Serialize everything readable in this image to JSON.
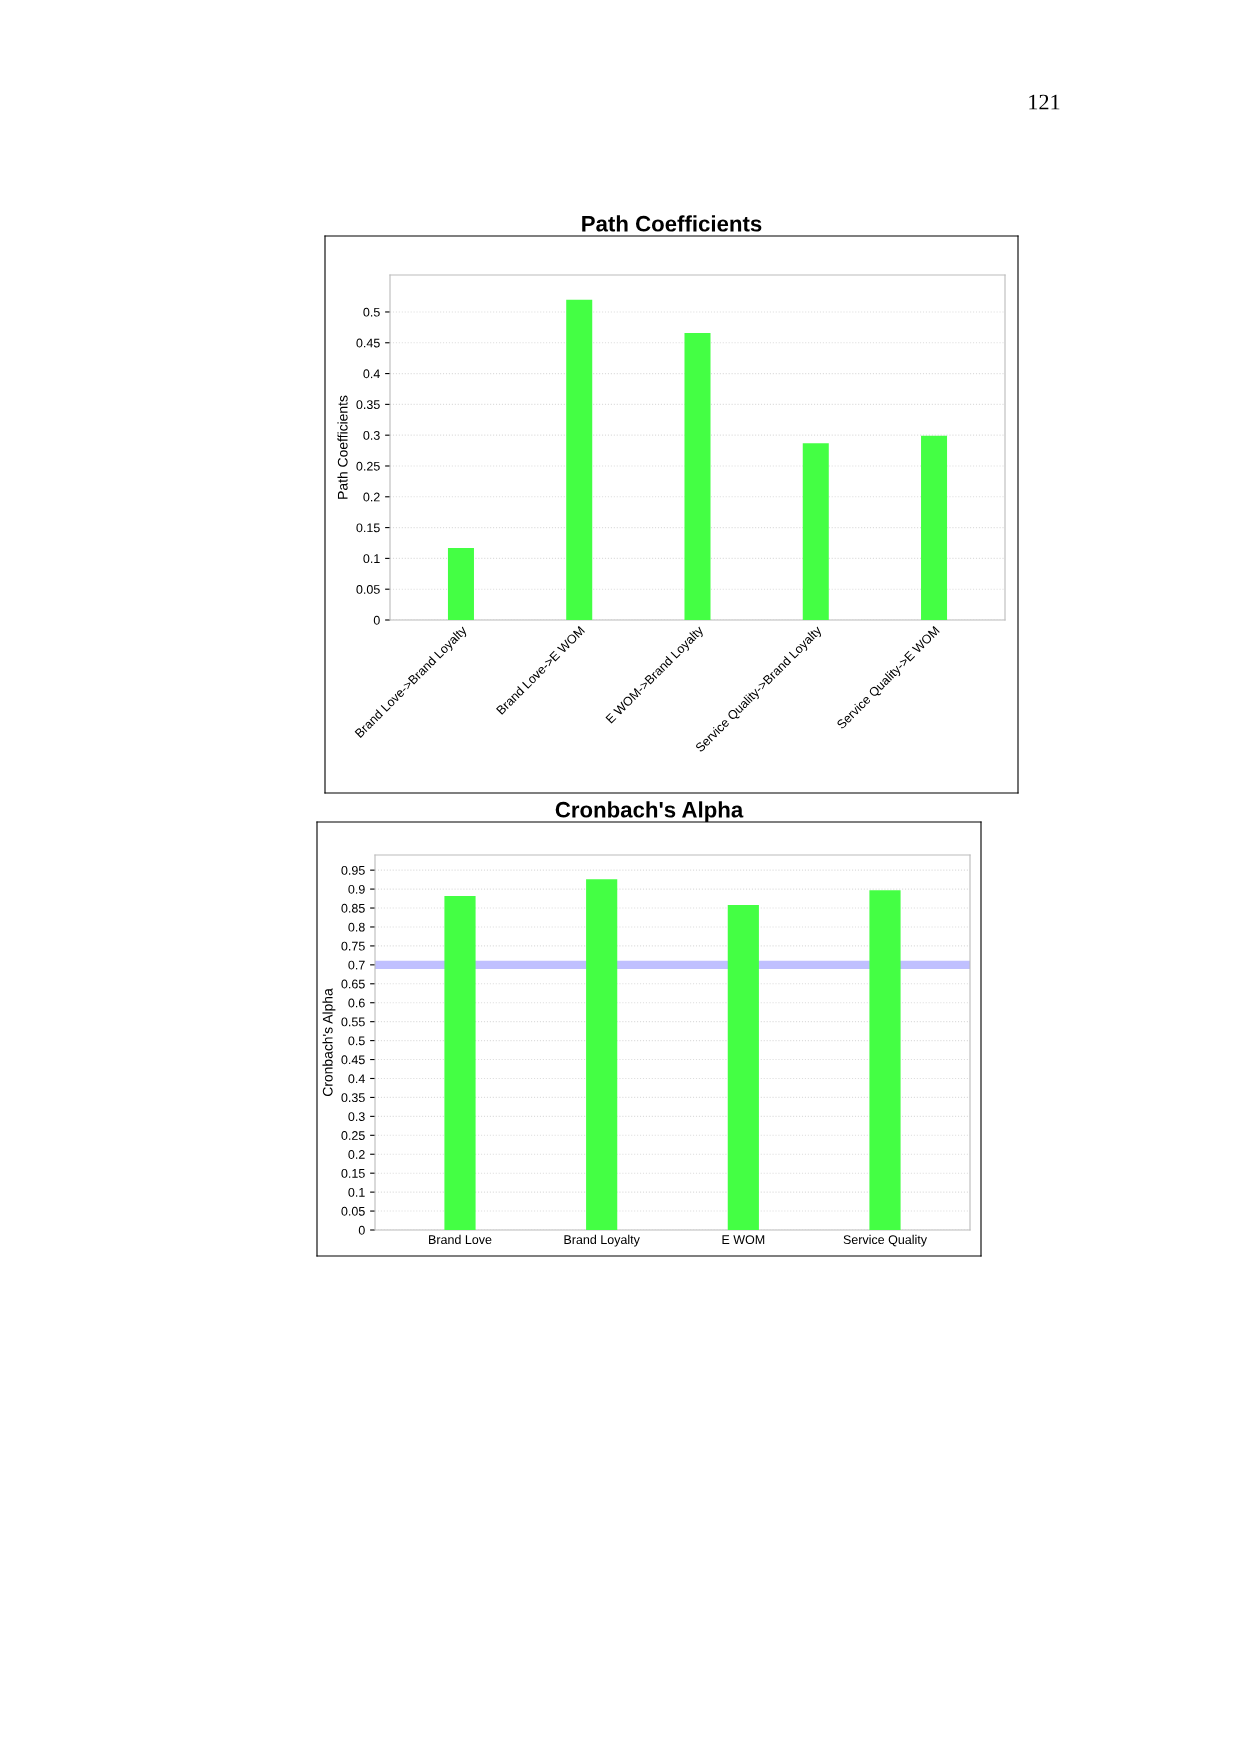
{
  "chart_data": [
    {
      "type": "bar",
      "title": "Path Coefficients",
      "ylabel": "Path Coefficients",
      "categories": [
        "Brand Love->Brand Loyalty",
        "Brand Love->E WOM",
        "E WOM->Brand Loyalty",
        "Service Quality->Brand Loyalty",
        "Service Quality->E WOM"
      ],
      "series": [
        {
          "color": "#44ff44",
          "values": [
            0.117,
            0.52,
            0.466,
            0.287,
            0.299
          ]
        }
      ],
      "ylim": [
        0,
        0.56
      ],
      "yticks": [
        0,
        0.05,
        0.1,
        0.15,
        0.2,
        0.25,
        0.3,
        0.35,
        0.4,
        0.45,
        0.5
      ],
      "grid": "y",
      "legend": false,
      "annotations": [
        "121"
      ]
    },
    {
      "type": "bar",
      "title": "Cronbach's Alpha",
      "ylabel": "Cronbach's Alpha",
      "categories": [
        "Brand Love",
        "Brand Loyalty",
        "E WOM",
        "Service Quality"
      ],
      "series": [
        {
          "color": "#44ff44",
          "values": [
            0.882,
            0.926,
            0.858,
            0.897
          ]
        }
      ],
      "ylim": [
        0,
        0.99
      ],
      "yticks": [
        0,
        0.05,
        0.1,
        0.15,
        0.2,
        0.25,
        0.3,
        0.35,
        0.4,
        0.45,
        0.5,
        0.55,
        0.6,
        0.65,
        0.7,
        0.75,
        0.8,
        0.85,
        0.9,
        0.95
      ],
      "grid": "y",
      "legend": false,
      "ref_lines": [
        {
          "axis": "y",
          "value": 0.7,
          "color": "#c0c0ff"
        }
      ]
    }
  ]
}
